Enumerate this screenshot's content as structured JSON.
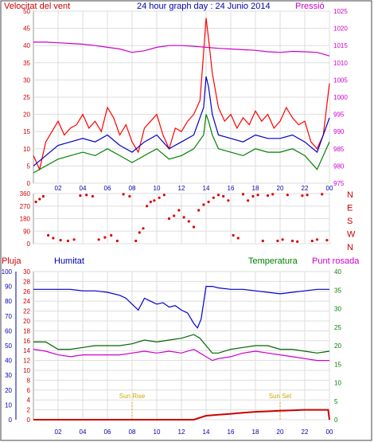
{
  "header": {
    "left_label": "Velocitat del vent",
    "title": "24 hour graph day : 24 Junio 2014",
    "right_label": "Pressió"
  },
  "colors": {
    "wind_gust": "#ff0000",
    "wind_avg": "#0000cc",
    "wind_min": "#008000",
    "pressure": "#cc00cc",
    "direction": "#dd0000",
    "humidity": "#0000cc",
    "temperature": "#006600",
    "dewpoint": "#cc00cc",
    "rain": "#cc0000",
    "sun": "#ccaa00",
    "axis_green": "#008000",
    "axis_red": "#cc0000",
    "axis_blue": "#0000aa"
  },
  "x_ticks": [
    "02",
    "04",
    "06",
    "08",
    "10",
    "12",
    "14",
    "16",
    "18",
    "20",
    "22",
    "00"
  ],
  "chart_data": [
    {
      "type": "line",
      "name": "wind-pressure",
      "x_range": [
        0,
        24
      ],
      "y_left": {
        "label": "Velocitat del vent",
        "range": [
          0,
          50
        ],
        "ticks": [
          "0",
          "5",
          "10",
          "15",
          "20",
          "25",
          "30",
          "35",
          "40",
          "45",
          "50"
        ]
      },
      "y_right": {
        "label": "Pressió",
        "range": [
          975,
          1025
        ],
        "ticks": [
          "975",
          "980",
          "985",
          "990",
          "995",
          "1000",
          "1005",
          "1010",
          "1015",
          "1020",
          "1025"
        ]
      },
      "grid": true,
      "pressure": {
        "x": [
          0,
          1,
          2,
          3,
          4,
          5,
          6,
          7,
          8,
          9,
          10,
          11,
          12,
          13,
          14,
          15,
          16,
          17,
          18,
          19,
          20,
          21,
          22,
          23,
          24
        ],
        "y": [
          1016,
          1016,
          1015.8,
          1015.6,
          1015.4,
          1015,
          1014.5,
          1014,
          1013,
          1013.5,
          1014.5,
          1015,
          1015,
          1014.8,
          1014.5,
          1014.2,
          1014,
          1013.8,
          1013.6,
          1013.2,
          1013,
          1013.3,
          1013.2,
          1013,
          1012
        ]
      },
      "wind_gust": {
        "x": [
          0,
          0.5,
          1,
          1.5,
          2,
          2.5,
          3,
          3.5,
          4,
          4.5,
          5,
          5.5,
          6,
          6.5,
          7,
          7.5,
          8,
          8.5,
          9,
          9.5,
          10,
          10.5,
          11,
          11.5,
          12,
          12.5,
          13,
          13.5,
          13.8,
          14,
          14.2,
          14.5,
          15,
          15.5,
          16,
          16.5,
          17,
          17.5,
          18,
          18.5,
          19,
          19.5,
          20,
          20.5,
          21,
          21.5,
          22,
          22.5,
          23,
          23.5,
          24
        ],
        "y": [
          8,
          4,
          12,
          15,
          18,
          14,
          16,
          17,
          20,
          16,
          18,
          15,
          22,
          19,
          14,
          17,
          12,
          9,
          16,
          18,
          20,
          14,
          10,
          16,
          15,
          18,
          20,
          24,
          38,
          48,
          42,
          32,
          22,
          18,
          20,
          16,
          19,
          17,
          21,
          18,
          20,
          16,
          18,
          22,
          19,
          17,
          18,
          12,
          10,
          14,
          29
        ]
      },
      "wind_avg": {
        "x": [
          0,
          1,
          2,
          3,
          4,
          5,
          6,
          7,
          8,
          9,
          10,
          11,
          12,
          13,
          13.8,
          14,
          14.2,
          14.5,
          15,
          16,
          17,
          18,
          19,
          20,
          21,
          22,
          23,
          24
        ],
        "y": [
          5,
          8,
          11,
          12,
          13,
          12,
          14,
          11,
          9,
          12,
          14,
          10,
          12,
          14,
          22,
          31,
          28,
          20,
          14,
          13,
          12,
          14,
          13,
          13,
          14,
          12,
          9,
          19
        ]
      },
      "wind_min": {
        "x": [
          0,
          1,
          2,
          3,
          4,
          5,
          6,
          7,
          8,
          9,
          10,
          11,
          12,
          13,
          13.8,
          14,
          14.2,
          14.5,
          15,
          16,
          17,
          18,
          19,
          20,
          21,
          22,
          23,
          24
        ],
        "y": [
          3,
          5,
          7,
          8,
          9,
          8,
          10,
          8,
          6,
          8,
          10,
          7,
          8,
          10,
          14,
          20,
          18,
          14,
          10,
          9,
          8,
          10,
          9,
          9,
          10,
          8,
          4,
          12
        ]
      }
    },
    {
      "type": "scatter",
      "name": "wind-direction",
      "x_range": [
        0,
        24
      ],
      "y_left": {
        "range": [
          0,
          360
        ],
        "ticks": [
          "0",
          "90",
          "180",
          "270",
          "360"
        ]
      },
      "y_right": {
        "ticks": [
          "N",
          "W",
          "S",
          "E",
          "N"
        ]
      },
      "points_x": [
        0.2,
        0.5,
        0.8,
        1.2,
        1.6,
        2.2,
        2.8,
        3.3,
        3.8,
        4.3,
        4.8,
        5.3,
        5.8,
        6.3,
        6.8,
        7.3,
        7.8,
        8.3,
        8.6,
        8.9,
        9.2,
        9.5,
        9.8,
        10.2,
        10.6,
        11,
        11.4,
        11.8,
        12.2,
        12.6,
        13,
        13.4,
        13.8,
        14.2,
        14.6,
        15,
        15.4,
        15.8,
        16.2,
        16.6,
        17,
        17.4,
        17.8,
        18.2,
        18.6,
        19,
        19.4,
        19.8,
        20.2,
        20.6,
        21,
        21.4,
        21.8,
        22.2,
        22.6,
        23,
        23.4,
        23.8
      ],
      "points_y": [
        300,
        320,
        340,
        60,
        40,
        25,
        20,
        30,
        345,
        350,
        340,
        30,
        45,
        60,
        20,
        355,
        340,
        20,
        80,
        110,
        270,
        300,
        310,
        330,
        350,
        180,
        200,
        240,
        190,
        160,
        120,
        240,
        280,
        300,
        330,
        350,
        340,
        310,
        60,
        40,
        355,
        310,
        340,
        350,
        20,
        345,
        355,
        20,
        30,
        350,
        20,
        15,
        345,
        350,
        20,
        30,
        355,
        25
      ]
    },
    {
      "type": "line",
      "name": "temp-humidity-rain",
      "x_range": [
        0,
        24
      ],
      "labels": {
        "rain": "Pluja",
        "humidity": "Humitat",
        "temperature": "Temperatura",
        "dewpoint": "Punt rosada"
      },
      "y_humidity": {
        "range": [
          0,
          100
        ],
        "ticks": [
          "0",
          "10",
          "20",
          "30",
          "40",
          "50",
          "60",
          "70",
          "80",
          "90",
          "100"
        ]
      },
      "y_rain": {
        "range": [
          0,
          30
        ],
        "ticks": [
          "0",
          "2",
          "4",
          "6",
          "8",
          "10",
          "12",
          "14",
          "16",
          "18",
          "20",
          "22",
          "24",
          "26",
          "28",
          "30"
        ]
      },
      "y_temperature": {
        "range": [
          0,
          40
        ],
        "ticks": [
          "0",
          "5",
          "10",
          "15",
          "20",
          "25",
          "30",
          "35",
          "40"
        ]
      },
      "grid": true,
      "humidity": {
        "x": [
          0,
          1,
          2,
          3,
          4,
          5,
          6,
          7,
          7.5,
          8,
          8.5,
          9,
          9.5,
          10,
          10.5,
          11,
          11.5,
          12,
          12.5,
          13,
          13.3,
          13.6,
          14,
          14.5,
          15,
          16,
          17,
          18,
          19,
          20,
          21,
          22,
          23,
          24
        ],
        "y": [
          88,
          88,
          88,
          88,
          87,
          87,
          86,
          84,
          82,
          78,
          74,
          82,
          80,
          78,
          79,
          76,
          77,
          74,
          72,
          65,
          62,
          68,
          90,
          90,
          89,
          88,
          88,
          87,
          86,
          85,
          86,
          87,
          88,
          88
        ]
      },
      "temperature": {
        "x": [
          0,
          1,
          2,
          3,
          4,
          5,
          6,
          7,
          8,
          9,
          10,
          11,
          12,
          13,
          13.5,
          14,
          14.5,
          15,
          16,
          17,
          18,
          19,
          20,
          21,
          22,
          23,
          24
        ],
        "y": [
          21,
          21,
          19,
          19,
          19.5,
          20,
          20,
          20,
          20.5,
          21.5,
          21,
          21.5,
          22,
          23,
          22,
          20,
          18,
          18,
          19,
          19.5,
          20,
          20,
          19,
          19,
          18.5,
          18,
          18.5
        ]
      },
      "dewpoint": {
        "x": [
          0,
          1,
          2,
          3,
          4,
          5,
          6,
          7,
          8,
          9,
          10,
          11,
          12,
          13,
          13.5,
          14,
          14.5,
          15,
          16,
          17,
          18,
          19,
          20,
          21,
          22,
          23,
          24
        ],
        "y": [
          19,
          18.5,
          17.5,
          17,
          17.5,
          17.5,
          17.5,
          17.5,
          18,
          18.5,
          18,
          18.5,
          18,
          19,
          18,
          17,
          16,
          16.5,
          17,
          18,
          18.5,
          18,
          17.5,
          17,
          16.5,
          16,
          16
        ]
      },
      "rain": {
        "x": [
          0,
          13,
          14,
          15,
          16,
          17,
          18,
          19,
          20,
          21,
          22,
          23,
          23.9,
          24
        ],
        "y": [
          0,
          0,
          0.8,
          1,
          1.2,
          1.4,
          1.6,
          1.7,
          1.8,
          1.9,
          2,
          2,
          2,
          0
        ]
      },
      "annotations": [
        {
          "x": 8,
          "label": "Sun Rise"
        },
        {
          "x": 20,
          "label": "Sun Set"
        }
      ]
    }
  ]
}
